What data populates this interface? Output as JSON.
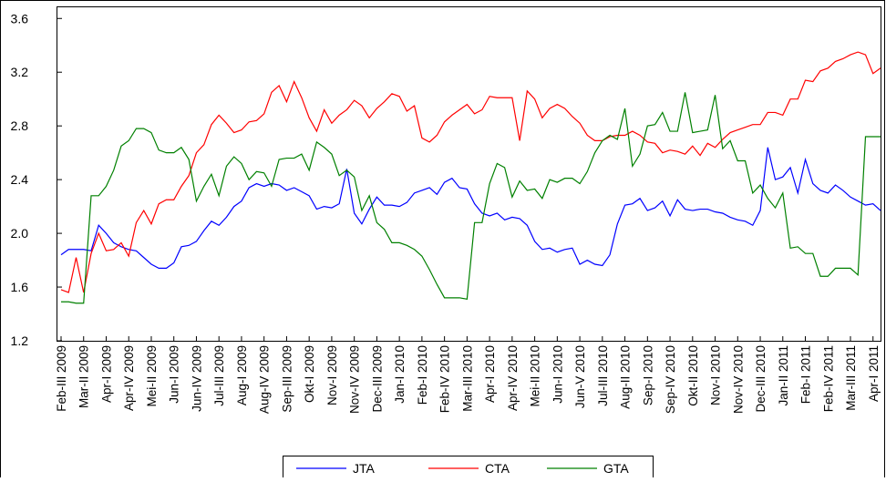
{
  "chart_data": {
    "type": "line",
    "categories": [
      "Feb-III 2009",
      null,
      null,
      "Mar-II 2009",
      null,
      null,
      "Apr-I 2009",
      null,
      null,
      "Apr-IV 2009",
      null,
      null,
      "Mei-II 2009",
      null,
      null,
      "Jun-I 2009",
      null,
      null,
      "Jun-IV 2009",
      null,
      null,
      "Jul-III 2009",
      null,
      null,
      "Aug-I 2009",
      null,
      null,
      "Aug-IV 2009",
      null,
      null,
      "Sep-III 2009",
      null,
      null,
      "Okt-I 2009",
      null,
      null,
      "Nov-I 2009",
      null,
      null,
      "Nov-IV 2009",
      null,
      null,
      "Dec-III 2009",
      null,
      null,
      "Jan-I 2010",
      null,
      null,
      "Feb-I 2010",
      null,
      null,
      "Feb-IV 2010",
      null,
      null,
      "Mar-III 2010",
      null,
      null,
      "Apr-I 2010",
      null,
      null,
      "Apr-IV 2010",
      null,
      null,
      "Mei-II 2010",
      null,
      null,
      "Jun-I 2010",
      null,
      null,
      "Jun-V 2010",
      null,
      null,
      "Jul-III 2010",
      null,
      null,
      "Aug-II 2010",
      null,
      null,
      "Sep-I 2010",
      null,
      null,
      "Sep-IV 2010",
      null,
      null,
      "Okt-II 2010",
      null,
      null,
      "Nov-I 2010",
      null,
      null,
      "Nov-IV 2010",
      null,
      null,
      "Dec-III 2010",
      null,
      null,
      "Jan-II 2011",
      null,
      null,
      "Feb-I 2011",
      null,
      null,
      "Feb-IV 2011",
      null,
      null,
      "Mar-III 2011",
      null,
      null,
      "Apr-I 2011",
      null
    ],
    "series": [
      {
        "name": "JTA",
        "color": "#0000ff",
        "values": [
          1.84,
          1.88,
          1.88,
          1.88,
          1.87,
          2.06,
          2.0,
          1.93,
          1.9,
          1.88,
          1.87,
          1.82,
          1.77,
          1.74,
          1.74,
          1.78,
          1.9,
          1.91,
          1.94,
          2.02,
          2.09,
          2.06,
          2.12,
          2.2,
          2.24,
          2.34,
          2.37,
          2.35,
          2.37,
          2.36,
          2.32,
          2.34,
          2.31,
          2.28,
          2.18,
          2.2,
          2.19,
          2.22,
          2.48,
          2.15,
          2.07,
          2.18,
          2.27,
          2.21,
          2.21,
          2.2,
          2.23,
          2.3,
          2.32,
          2.34,
          2.29,
          2.38,
          2.41,
          2.34,
          2.33,
          2.22,
          2.15,
          2.13,
          2.15,
          2.1,
          2.12,
          2.11,
          2.06,
          1.94,
          1.88,
          1.89,
          1.86,
          1.88,
          1.89,
          1.77,
          1.8,
          1.77,
          1.76,
          1.84,
          2.07,
          2.21,
          2.22,
          2.26,
          2.17,
          2.19,
          2.24,
          2.13,
          2.25,
          2.18,
          2.17,
          2.18,
          2.18,
          2.16,
          2.15,
          2.12,
          2.1,
          2.09,
          2.06,
          2.17,
          2.64,
          2.4,
          2.42,
          2.49,
          2.3,
          2.55,
          2.37,
          2.32,
          2.3,
          2.36,
          2.32,
          2.27,
          2.24,
          2.21,
          2.22,
          2.17
        ]
      },
      {
        "name": "CTA",
        "color": "#ff0000",
        "values": [
          1.58,
          1.56,
          1.82,
          1.56,
          1.85,
          2.0,
          1.87,
          1.88,
          1.93,
          1.83,
          2.08,
          2.17,
          2.07,
          2.22,
          2.25,
          2.25,
          2.35,
          2.43,
          2.6,
          2.66,
          2.81,
          2.88,
          2.82,
          2.75,
          2.77,
          2.83,
          2.84,
          2.89,
          3.05,
          3.1,
          2.98,
          3.13,
          3.01,
          2.86,
          2.76,
          2.92,
          2.82,
          2.88,
          2.92,
          2.99,
          2.95,
          2.86,
          2.93,
          2.98,
          3.04,
          3.02,
          2.91,
          2.95,
          2.71,
          2.68,
          2.73,
          2.83,
          2.88,
          2.92,
          2.96,
          2.89,
          2.92,
          3.02,
          3.01,
          3.01,
          3.01,
          2.69,
          3.06,
          3.0,
          2.86,
          2.93,
          2.96,
          2.93,
          2.87,
          2.82,
          2.73,
          2.69,
          2.69,
          2.72,
          2.73,
          2.73,
          2.76,
          2.73,
          2.68,
          2.67,
          2.6,
          2.62,
          2.61,
          2.59,
          2.65,
          2.58,
          2.67,
          2.64,
          2.7,
          2.75,
          2.77,
          2.79,
          2.81,
          2.81,
          2.9,
          2.9,
          2.88,
          3.0,
          3.0,
          3.14,
          3.13,
          3.21,
          3.23,
          3.28,
          3.3,
          3.33,
          3.35,
          3.33,
          3.19,
          3.23
        ]
      },
      {
        "name": "GTA",
        "color": "#008000",
        "values": [
          1.49,
          1.49,
          1.48,
          1.48,
          2.28,
          2.28,
          2.35,
          2.47,
          2.65,
          2.69,
          2.78,
          2.78,
          2.75,
          2.62,
          2.6,
          2.6,
          2.64,
          2.55,
          2.24,
          2.35,
          2.44,
          2.28,
          2.5,
          2.57,
          2.52,
          2.4,
          2.46,
          2.45,
          2.35,
          2.55,
          2.56,
          2.56,
          2.59,
          2.47,
          2.68,
          2.64,
          2.59,
          2.43,
          2.47,
          2.42,
          2.17,
          2.28,
          2.08,
          2.03,
          1.93,
          1.93,
          1.91,
          1.88,
          1.83,
          1.73,
          1.62,
          1.52,
          1.52,
          1.52,
          1.51,
          2.08,
          2.08,
          2.37,
          2.52,
          2.49,
          2.27,
          2.39,
          2.32,
          2.33,
          2.26,
          2.4,
          2.38,
          2.41,
          2.41,
          2.37,
          2.46,
          2.6,
          2.69,
          2.73,
          2.7,
          2.93,
          2.5,
          2.59,
          2.8,
          2.81,
          2.9,
          2.76,
          2.76,
          3.05,
          2.75,
          2.76,
          2.77,
          3.03,
          2.63,
          2.69,
          2.54,
          2.54,
          2.3,
          2.36,
          2.26,
          2.19,
          2.3,
          1.89,
          1.9,
          1.85,
          1.85,
          1.68,
          1.68,
          1.74,
          1.74,
          1.74,
          1.69,
          2.72,
          2.72,
          2.72
        ]
      }
    ],
    "ylim": [
      1.2,
      3.69
    ],
    "yticks": [
      1.2,
      1.6,
      {
        "value": 2.0,
        "label": "2.0"
      },
      2.4,
      2.8,
      3.2,
      3.6
    ],
    "grid": false
  }
}
